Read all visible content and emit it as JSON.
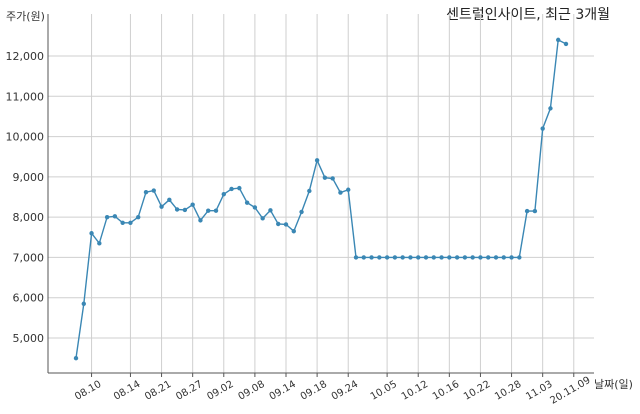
{
  "chart_data": {
    "type": "line",
    "title": "센트럴인사이트, 최근 3개월",
    "ylabel": "주가(원)",
    "xlabel": "날짜(일)",
    "ylim": [
      4000,
      13000
    ],
    "yticks": [
      5000,
      6000,
      7000,
      8000,
      9000,
      10000,
      11000,
      12000
    ],
    "ytick_labels": [
      "5,000",
      "6,000",
      "7,000",
      "8,000",
      "9,000",
      "10,000",
      "11,000",
      "12,000"
    ],
    "xtick_labels": [
      "08.10",
      "08.14",
      "08.21",
      "08.27",
      "09.02",
      "09.08",
      "09.14",
      "09.18",
      "09.24",
      "10.05",
      "10.12",
      "10.16",
      "10.22",
      "10.28",
      "11.03",
      "20.11.09"
    ],
    "xtick_index": [
      2,
      7,
      11,
      15,
      19,
      23,
      27,
      31,
      35,
      40,
      44,
      48,
      52,
      56,
      60,
      64
    ],
    "grid": true,
    "color": "#3a87b4",
    "values": [
      4500,
      5850,
      7600,
      7350,
      8000,
      8020,
      7860,
      7860,
      8000,
      8620,
      8660,
      8260,
      8430,
      8190,
      8180,
      8310,
      7920,
      8160,
      8160,
      8570,
      8700,
      8720,
      8360,
      8240,
      7970,
      8170,
      7830,
      7820,
      7650,
      8130,
      8650,
      9410,
      8980,
      8960,
      8610,
      8680,
      7000,
      7000,
      7000,
      7000,
      7000,
      7000,
      7000,
      7000,
      7000,
      7000,
      7000,
      7000,
      7000,
      7000,
      7000,
      7000,
      7000,
      7000,
      7000,
      7000,
      7000,
      7000,
      8150,
      8150,
      10200,
      10700,
      12400,
      12300
    ]
  }
}
